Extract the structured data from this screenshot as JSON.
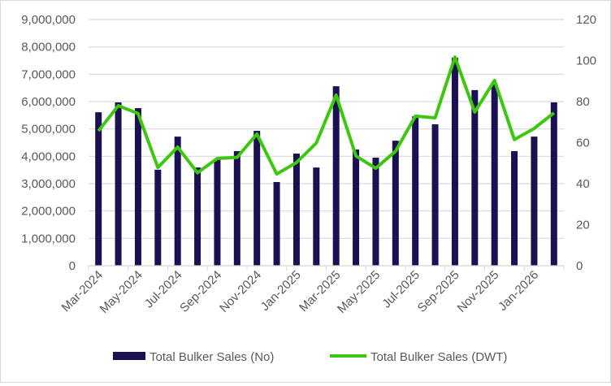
{
  "chart_data": {
    "type": "bar+line",
    "categories": [
      "Mar-2024",
      "Apr-2024",
      "May-2024",
      "Jun-2024",
      "Jul-2024",
      "Aug-2024",
      "Sep-2024",
      "Oct-2024",
      "Nov-2024",
      "Dec-2024",
      "Jan-2025",
      "Feb-2025",
      "Mar-2025",
      "Apr-2025",
      "May-2025",
      "Jun-2025",
      "Jul-2025",
      "Aug-2025",
      "Sep-2025",
      "Oct-2025",
      "Nov-2025",
      "Dec-2025",
      "Jan-2026",
      "Feb-2026"
    ],
    "tick_labels": [
      "Mar-2024",
      "May-2024",
      "Jul-2024",
      "Sep-2024",
      "Nov-2024",
      "Jan-2025",
      "Mar-2025",
      "May-2025",
      "Jul-2025",
      "Sep-2025",
      "Nov-2025",
      "Jan-2026"
    ],
    "series": [
      {
        "name": "Total Bulker Sales (No)",
        "type": "bar",
        "axis": "left",
        "color": "#1b1052",
        "values": [
          5610000,
          5970000,
          5760000,
          3510000,
          4720000,
          3590000,
          3900000,
          4190000,
          4930000,
          3060000,
          4100000,
          3590000,
          6560000,
          4250000,
          3950000,
          4570000,
          5460000,
          5170000,
          7600000,
          6420000,
          6620000,
          4190000,
          4720000,
          5970000
        ]
      },
      {
        "name": "Total Bulker Sales (DWT)",
        "type": "line",
        "axis": "right",
        "color": "#3cc80f",
        "values": [
          65.7,
          78,
          74.2,
          47.9,
          57.8,
          45.3,
          52.3,
          52.8,
          64.2,
          44.7,
          50.3,
          59.8,
          83.2,
          53.5,
          47.5,
          55.8,
          72.9,
          72.1,
          101.7,
          74.9,
          90.3,
          61.5,
          66.9,
          74.5
        ]
      }
    ],
    "left_axis": {
      "ylim": [
        0,
        9000000
      ],
      "ticks": [
        "0",
        "1,000,000",
        "2,000,000",
        "3,000,000",
        "4,000,000",
        "5,000,000",
        "6,000,000",
        "7,000,000",
        "8,000,000",
        "9,000,000"
      ]
    },
    "right_axis": {
      "ylim": [
        0,
        120
      ],
      "ticks": [
        "0",
        "20",
        "40",
        "60",
        "80",
        "100",
        "120"
      ]
    },
    "grid": true,
    "legend": "bottom"
  }
}
